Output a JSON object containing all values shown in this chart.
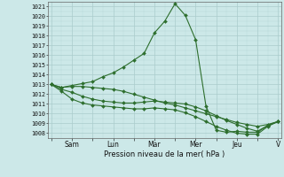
{
  "background_color": "#cce8e8",
  "grid_color": "#aacccc",
  "line_color": "#2d6e2d",
  "marker_color": "#2d6e2d",
  "xlabel_text": "Pression niveau de la mer( hPa )",
  "ylim_min": 1007.5,
  "ylim_max": 1021.5,
  "yticks": [
    1008,
    1009,
    1010,
    1011,
    1012,
    1013,
    1014,
    1015,
    1016,
    1017,
    1018,
    1019,
    1020,
    1021
  ],
  "xtick_labels": [
    "",
    "Sam",
    "",
    "Lun",
    "",
    "Mar",
    "",
    "Mer",
    "",
    "Jeu",
    "",
    "V"
  ],
  "xtick_positions": [
    0,
    2,
    4,
    6,
    8,
    10,
    12,
    14,
    16,
    18,
    20,
    22
  ],
  "n_points": 23,
  "series": [
    [
      1013.0,
      1012.7,
      1012.9,
      1013.1,
      1013.3,
      1013.8,
      1014.2,
      1014.8,
      1015.5,
      1016.2,
      1018.3,
      1019.5,
      1021.3,
      1020.1,
      1017.6,
      1010.8,
      1008.3,
      1008.1,
      1008.2,
      1008.1,
      1008.1,
      1008.8,
      1009.2
    ],
    [
      1013.0,
      1012.7,
      1012.8,
      1012.8,
      1012.7,
      1012.6,
      1012.5,
      1012.3,
      1012.0,
      1011.7,
      1011.4,
      1011.1,
      1010.9,
      1010.6,
      1010.3,
      1010.0,
      1009.7,
      1009.4,
      1009.1,
      1008.9,
      1008.7,
      1008.9,
      1009.2
    ],
    [
      1013.0,
      1012.5,
      1012.2,
      1011.8,
      1011.5,
      1011.3,
      1011.2,
      1011.1,
      1011.1,
      1011.2,
      1011.3,
      1011.2,
      1011.1,
      1011.0,
      1010.7,
      1010.3,
      1009.8,
      1009.3,
      1008.9,
      1008.5,
      1008.2,
      1008.8,
      1009.2
    ],
    [
      1013.0,
      1012.3,
      1011.5,
      1011.1,
      1010.9,
      1010.8,
      1010.7,
      1010.6,
      1010.5,
      1010.5,
      1010.6,
      1010.5,
      1010.4,
      1010.1,
      1009.7,
      1009.2,
      1008.7,
      1008.3,
      1008.0,
      1007.9,
      1007.9,
      1008.7,
      1009.2
    ]
  ]
}
